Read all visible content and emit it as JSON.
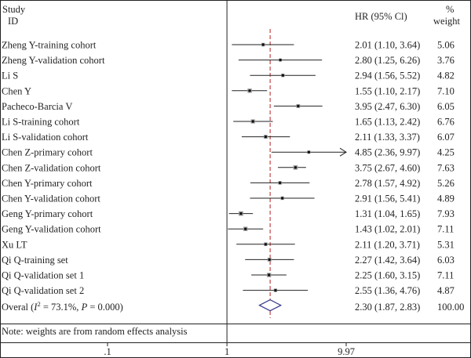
{
  "header": {
    "study_line1": "Study",
    "study_line2": "ID",
    "hr_label": "HR (95% Cl)",
    "weight_line1": "%",
    "weight_line2": "weight"
  },
  "note": "Note: weights are from random effects analysis",
  "colors": {
    "diamond": "#3a3a8c",
    "reference_line": "#b22222",
    "axis": "#222222",
    "point": "#111111"
  },
  "chart_data": {
    "type": "forest",
    "scale": "log",
    "xlim": [
      0.1,
      9.97
    ],
    "x_ticks": [
      {
        "value": 0.1,
        "label": ".1"
      },
      {
        "value": 1,
        "label": "1"
      },
      {
        "value": 9.97,
        "label": "9.97"
      }
    ],
    "null_line": 1,
    "overall_line": 2.3,
    "studies": [
      {
        "label": "Zheng Y-training cohort",
        "hr": 2.01,
        "lo": 1.1,
        "hi": 3.64,
        "ci_text": "2.01 (1.10, 3.64)",
        "weight": "5.06"
      },
      {
        "label": "Zheng Y-validation cohort",
        "hr": 2.8,
        "lo": 1.25,
        "hi": 6.26,
        "ci_text": "2.80 (1.25, 6.26)",
        "weight": "3.76"
      },
      {
        "label": "Li S",
        "hr": 2.94,
        "lo": 1.56,
        "hi": 5.52,
        "ci_text": "2.94 (1.56, 5.52)",
        "weight": "4.82"
      },
      {
        "label": "Chen Y",
        "hr": 1.55,
        "lo": 1.1,
        "hi": 2.17,
        "ci_text": "1.55 (1.10, 2.17)",
        "weight": "7.10"
      },
      {
        "label": "Pacheco-Barcia V",
        "hr": 3.95,
        "lo": 2.47,
        "hi": 6.3,
        "ci_text": "3.95 (2.47, 6.30)",
        "weight": "6.05"
      },
      {
        "label": "Li S-training cohort",
        "hr": 1.65,
        "lo": 1.13,
        "hi": 2.42,
        "ci_text": "1.65 (1.13, 2.42)",
        "weight": "6.76"
      },
      {
        "label": "Li S-validation cohort",
        "hr": 2.11,
        "lo": 1.33,
        "hi": 3.37,
        "ci_text": "2.11 (1.33, 3.37)",
        "weight": "6.07"
      },
      {
        "label": "Chen Z-primary cohort",
        "hr": 4.85,
        "lo": 2.36,
        "hi": 9.97,
        "ci_text": "4.85 (2.36, 9.97)",
        "weight": "4.25",
        "arrow": true
      },
      {
        "label": "Chen Z-validation cohort",
        "hr": 3.75,
        "lo": 2.67,
        "hi": 4.6,
        "ci_text": "3.75 (2.67, 4.60)",
        "weight": "7.63"
      },
      {
        "label": "Chen Y-primary cohort",
        "hr": 2.78,
        "lo": 1.57,
        "hi": 4.92,
        "ci_text": "2.78 (1.57, 4.92)",
        "weight": "5.26"
      },
      {
        "label": "Chen Y-validation cohort",
        "hr": 2.91,
        "lo": 1.56,
        "hi": 5.41,
        "ci_text": "2.91 (1.56, 5.41)",
        "weight": "4.89"
      },
      {
        "label": "Geng Y-primary cohort",
        "hr": 1.31,
        "lo": 1.04,
        "hi": 1.65,
        "ci_text": "1.31 (1.04, 1.65)",
        "weight": "7.93"
      },
      {
        "label": "Geng Y-validation cohort",
        "hr": 1.43,
        "lo": 1.02,
        "hi": 2.01,
        "ci_text": "1.43 (1.02, 2.01)",
        "weight": "7.11"
      },
      {
        "label": "Xu LT",
        "hr": 2.11,
        "lo": 1.2,
        "hi": 3.71,
        "ci_text": "2.11 (1.20, 3.71)",
        "weight": "5.31"
      },
      {
        "label": "Qi Q-training set",
        "hr": 2.27,
        "lo": 1.42,
        "hi": 3.64,
        "ci_text": "2.27 (1.42, 3.64)",
        "weight": "6.03"
      },
      {
        "label": "Qi Q-validation set 1",
        "hr": 2.25,
        "lo": 1.6,
        "hi": 3.15,
        "ci_text": "2.25 (1.60, 3.15)",
        "weight": "7.11"
      },
      {
        "label": "Qi Q-validation set 2",
        "hr": 2.55,
        "lo": 1.36,
        "hi": 4.76,
        "ci_text": "2.55 (1.36, 4.76)",
        "weight": "4.87"
      }
    ],
    "overall": {
      "label_prefix": "Overal (",
      "i2_symbol": "I",
      "i2_exp": "2",
      "label_suffix": " = 73.1%, ",
      "p_symbol": "P",
      "p_suffix": " = 0.000)",
      "hr": 2.3,
      "lo": 1.87,
      "hi": 2.83,
      "ci_text": "2.30 (1.87, 2.83)",
      "weight": "100.00"
    }
  }
}
